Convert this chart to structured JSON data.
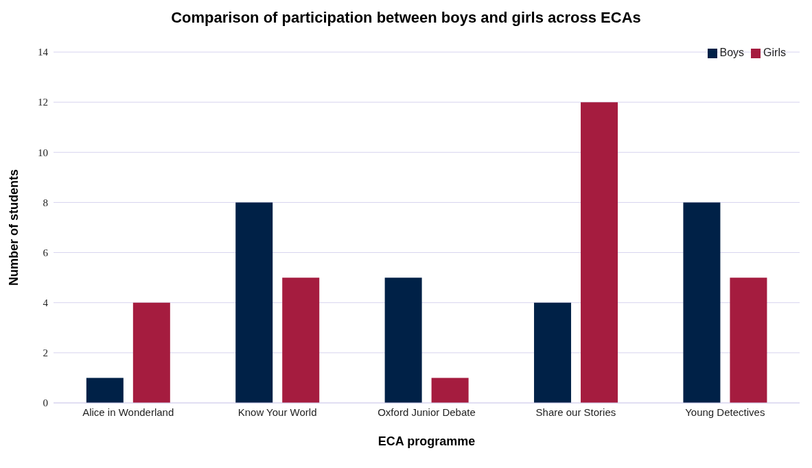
{
  "chart_data": {
    "type": "bar",
    "title": "Comparison of participation between boys and girls across ECAs",
    "xlabel": "ECA programme",
    "ylabel": "Number of students",
    "categories": [
      "Alice in Wonderland",
      "Know Your World",
      "Oxford Junior Debate",
      "Share our Stories",
      "Young Detectives"
    ],
    "series": [
      {
        "name": "Boys",
        "color": "#002147",
        "values": [
          1,
          8,
          5,
          4,
          8
        ]
      },
      {
        "name": "Girls",
        "color": "#a51c3f",
        "values": [
          4,
          5,
          1,
          12,
          5
        ]
      }
    ],
    "ylim": [
      0,
      14
    ],
    "yticks": [
      0,
      2,
      4,
      6,
      8,
      10,
      12,
      14
    ],
    "grid": "y",
    "legend": "top right"
  }
}
